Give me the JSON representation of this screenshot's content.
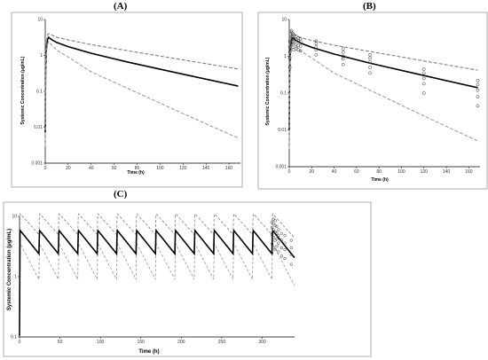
{
  "panels": [
    {
      "label": "(A)",
      "xlabel": "Time (h)",
      "ylabel": "Systemic Concentration (μg/mL)"
    },
    {
      "label": "(B)",
      "xlabel": "Time (h)",
      "ylabel": "Systemic Concentration (μg/mL)"
    },
    {
      "label": "(C)",
      "xlabel": "Time (h)",
      "ylabel": "Systemic Concentration (μg/mL)"
    }
  ],
  "chart_data": [
    {
      "type": "line",
      "panel": "A",
      "scale_y": "log",
      "xlim": [
        0,
        170
      ],
      "ylim": [
        0.001,
        10
      ],
      "x_ticks": [
        0,
        20,
        40,
        60,
        80,
        100,
        120,
        140,
        160
      ],
      "y_ticks": [
        0.001,
        0.01,
        0.1,
        1,
        10
      ],
      "y_tick_labels": [
        "0.001",
        "0.01",
        "0.1",
        "1",
        "10"
      ],
      "series": [
        {
          "style": "solid",
          "x": [
            0,
            0.3,
            1,
            2,
            3,
            4,
            6,
            10,
            20,
            40,
            72,
            120,
            168
          ],
          "y": [
            0.007,
            0.3,
            1.6,
            2.8,
            3.2,
            3.0,
            2.7,
            2.3,
            1.75,
            1.15,
            0.65,
            0.3,
            0.14
          ]
        },
        {
          "style": "dashed",
          "x": [
            0,
            0.3,
            1,
            2,
            3,
            4,
            10,
            20,
            40,
            72,
            120,
            168
          ],
          "y": [
            0.015,
            0.6,
            2.4,
            3.8,
            4.0,
            3.9,
            3.2,
            2.7,
            2.0,
            1.35,
            0.75,
            0.42
          ]
        },
        {
          "style": "dashed",
          "x": [
            0,
            0.3,
            1,
            2,
            3,
            4,
            10,
            20,
            40,
            72,
            120,
            168
          ],
          "y": [
            0.003,
            0.15,
            1.1,
            2.1,
            2.4,
            2.2,
            1.4,
            0.9,
            0.35,
            0.12,
            0.024,
            0.005
          ]
        }
      ]
    },
    {
      "type": "scatter",
      "panel": "B",
      "scale_y": "log",
      "xlim": [
        0,
        170
      ],
      "ylim": [
        0.001,
        10
      ],
      "x_ticks": [
        0,
        20,
        40,
        60,
        80,
        100,
        120,
        140,
        160
      ],
      "y_ticks": [
        0.001,
        0.01,
        0.1,
        1,
        10
      ],
      "y_tick_labels": [
        "0.001",
        "0.01",
        "0.1",
        "1",
        "10"
      ],
      "series": [
        {
          "style": "solid",
          "x": [
            0,
            0.3,
            1,
            2,
            3,
            4,
            6,
            10,
            20,
            40,
            72,
            120,
            168
          ],
          "y": [
            0.01,
            0.3,
            1.6,
            2.8,
            3.2,
            3.0,
            2.7,
            2.3,
            1.75,
            1.15,
            0.65,
            0.3,
            0.14
          ]
        },
        {
          "style": "dashed",
          "x": [
            0,
            0.3,
            1,
            2,
            3,
            4,
            10,
            20,
            40,
            72,
            120,
            168
          ],
          "y": [
            0.015,
            0.6,
            2.4,
            3.8,
            4.0,
            3.9,
            3.2,
            2.7,
            2.0,
            1.35,
            0.75,
            0.42
          ]
        },
        {
          "style": "dashed",
          "x": [
            0,
            0.3,
            1,
            2,
            3,
            4,
            10,
            20,
            40,
            72,
            120,
            168
          ],
          "y": [
            0.003,
            0.15,
            1.1,
            2.1,
            2.4,
            2.2,
            1.4,
            0.9,
            0.35,
            0.12,
            0.024,
            0.005
          ]
        }
      ],
      "observed": [
        {
          "t": 0.5,
          "y": [
            0.5,
            0.9,
            1.3,
            1.8,
            2.5
          ]
        },
        {
          "t": 1,
          "y": [
            1.5,
            2.2,
            3.0,
            4.0
          ]
        },
        {
          "t": 2,
          "y": [
            2.0,
            2.8,
            3.5,
            4.5,
            5.0
          ]
        },
        {
          "t": 3,
          "y": [
            1.8,
            2.5,
            3.3,
            4.2
          ]
        },
        {
          "t": 4,
          "y": [
            1.5,
            2.3,
            3.0,
            3.8
          ]
        },
        {
          "t": 6,
          "y": [
            1.6,
            2.1,
            2.8,
            3.5
          ]
        },
        {
          "t": 8,
          "y": [
            1.5,
            2.0,
            2.6,
            3.2
          ]
        },
        {
          "t": 10,
          "y": [
            1.4,
            1.9,
            2.5,
            3.0
          ]
        },
        {
          "t": 24,
          "y": [
            1.1,
            1.5,
            1.8,
            2.2,
            2.6
          ]
        },
        {
          "t": 48,
          "y": [
            0.6,
            0.85,
            1.0,
            1.3,
            1.6
          ]
        },
        {
          "t": 72,
          "y": [
            0.35,
            0.5,
            0.7,
            0.9,
            1.1
          ]
        },
        {
          "t": 120,
          "y": [
            0.1,
            0.18,
            0.25,
            0.35,
            0.45
          ]
        },
        {
          "t": 168,
          "y": [
            0.045,
            0.08,
            0.12,
            0.17,
            0.22
          ]
        }
      ]
    },
    {
      "type": "line",
      "panel": "C",
      "scale_y": "log",
      "xlim": [
        0,
        340
      ],
      "ylim": [
        0.1,
        10
      ],
      "x_ticks": [
        0,
        50,
        100,
        150,
        200,
        250,
        300
      ],
      "y_ticks": [
        0.1,
        1,
        10
      ],
      "y_tick_labels": [
        "0.1",
        "1",
        "10"
      ],
      "dosing_interval_h": 24,
      "doses": 14,
      "median_peak": 5.8,
      "median_trough": 2.4,
      "upper_peak": 11.0,
      "upper_trough": 5.0,
      "lower_peak": 3.5,
      "lower_trough": 0.9,
      "observed": [
        {
          "t": 312,
          "y": [
            2.5,
            3.5,
            5.0,
            6.5,
            8.0
          ]
        },
        {
          "t": 314,
          "y": [
            3.0,
            4.5,
            6.0,
            7.5,
            9.0
          ]
        },
        {
          "t": 316,
          "y": [
            2.8,
            4.0,
            5.5,
            7.0,
            8.5
          ]
        },
        {
          "t": 318,
          "y": [
            3.2,
            4.2,
            5.3,
            6.8
          ]
        },
        {
          "t": 320,
          "y": [
            2.6,
            3.6,
            4.8,
            6.0
          ]
        },
        {
          "t": 324,
          "y": [
            2.2,
            3.0,
            4.0,
            5.2
          ]
        },
        {
          "t": 328,
          "y": [
            2.0,
            2.8,
            3.6,
            4.8
          ]
        },
        {
          "t": 336,
          "y": [
            1.6,
            2.3,
            3.0,
            4.0
          ]
        }
      ]
    }
  ]
}
